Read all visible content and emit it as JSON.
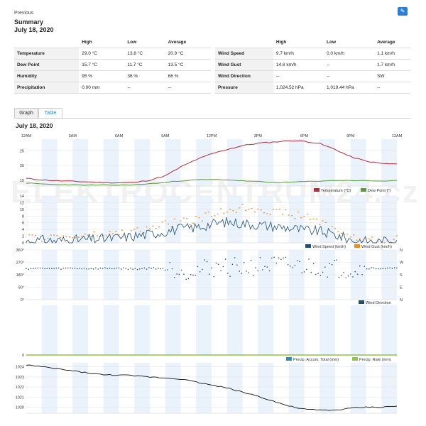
{
  "header": {
    "previous_label": "Previous",
    "title": "Summary",
    "date": "July 18, 2020",
    "edit_icon": "pencil-icon"
  },
  "summary_left": {
    "columns": [
      "",
      "High",
      "Low",
      "Average"
    ],
    "rows": [
      {
        "label": "Temperature",
        "high": "29.0 °C",
        "low": "13.8 °C",
        "avg": "20.9 °C"
      },
      {
        "label": "Dew Point",
        "high": "15.7 °C",
        "low": "11.7 °C",
        "avg": "13.5 °C"
      },
      {
        "label": "Humidity",
        "high": "95 %",
        "low": "36 %",
        "avg": "66 %"
      },
      {
        "label": "Precipitation",
        "high": "0.00 mm",
        "low": "--",
        "avg": "--"
      }
    ]
  },
  "summary_right": {
    "columns": [
      "",
      "High",
      "Low",
      "Average"
    ],
    "rows": [
      {
        "label": "Wind Speed",
        "high": "9.7 km/h",
        "low": "0.0 km/h",
        "avg": "1.1 km/h"
      },
      {
        "label": "Wind Gust",
        "high": "14.8 km/h",
        "low": "--",
        "avg": "1.7 km/h"
      },
      {
        "label": "Wind Direction",
        "high": "--",
        "low": "--",
        "avg": "SW"
      },
      {
        "label": "Pressure",
        "high": "1,024.52 hPa",
        "low": "1,019.44 hPa",
        "avg": "--"
      }
    ]
  },
  "tabs": [
    "Graph",
    "Table"
  ],
  "chart_date": "July 18, 2020",
  "watermark": "ELEKTROCENTRUM24.cz",
  "colors": {
    "temperature": "#b52a36",
    "dew_point": "#5a9a3a",
    "wind_speed": "#1f4e79",
    "wind_gust": "#f08a24",
    "wind_direction": "#1f4e79",
    "precip_total": "#2a8fb8",
    "precip_rate": "#8dc63f",
    "pressure": "#111111",
    "band": "#eaf2fb"
  },
  "chart_data": [
    {
      "type": "line",
      "x_ticks": [
        "12AM",
        "3AM",
        "6AM",
        "9AM",
        "12PM",
        "3PM",
        "6PM",
        "9PM",
        "12AM"
      ],
      "ylim": [
        13,
        29
      ],
      "y_ticks": [
        15,
        20,
        25
      ],
      "series": [
        {
          "name": "Temperature (°C)",
          "x": [
            0,
            1,
            2,
            3,
            4,
            5,
            6,
            7,
            8,
            9,
            10,
            11,
            12,
            13,
            14,
            15,
            16,
            17,
            18,
            19,
            20,
            21,
            22,
            23,
            24
          ],
          "values": [
            15.6,
            15.1,
            14.8,
            14.6,
            14.4,
            14.2,
            14.1,
            14.2,
            15.0,
            16.5,
            19.5,
            22.0,
            24.0,
            25.5,
            26.8,
            27.6,
            28.0,
            28.5,
            28.3,
            27.5,
            25.5,
            23.0,
            21.5,
            20.7,
            20.5
          ]
        },
        {
          "name": "Dew Point (°)",
          "x": [
            0,
            1,
            2,
            3,
            4,
            5,
            6,
            7,
            8,
            9,
            10,
            11,
            12,
            13,
            14,
            15,
            16,
            17,
            18,
            19,
            20,
            21,
            22,
            23,
            24
          ],
          "values": [
            14.0,
            13.7,
            13.5,
            13.4,
            13.3,
            13.3,
            13.3,
            13.4,
            13.8,
            14.2,
            14.8,
            15.1,
            15.2,
            15.1,
            14.8,
            14.5,
            14.2,
            14.3,
            14.5,
            14.7,
            14.9,
            14.9,
            14.8,
            14.7,
            14.8
          ]
        }
      ]
    },
    {
      "type": "line",
      "ylim": [
        0,
        14
      ],
      "y_ticks": [
        0,
        2,
        4,
        6,
        8,
        10,
        12,
        14
      ],
      "series": [
        {
          "name": "Wind Speed (km/h)",
          "x": [
            0,
            1,
            2,
            3,
            4,
            5,
            6,
            7,
            8,
            9,
            10,
            11,
            12,
            13,
            14,
            15,
            16,
            17,
            18,
            19,
            20,
            21,
            22,
            23,
            24
          ],
          "values": [
            0.4,
            0.8,
            0.6,
            0.8,
            1.0,
            1.2,
            1.5,
            2.0,
            2.6,
            3.4,
            4.2,
            4.6,
            5.6,
            6.2,
            5.8,
            5.4,
            4.9,
            4.5,
            3.7,
            3.4,
            2.4,
            0.9,
            0.4,
            0.3,
            1.1
          ]
        },
        {
          "name": "Wind Gust (km/h)",
          "x": [
            0,
            1,
            2,
            3,
            4,
            5,
            6,
            7,
            8,
            9,
            10,
            11,
            12,
            13,
            14,
            15,
            16,
            17,
            18,
            19,
            20,
            21,
            22,
            23,
            24
          ],
          "values": [
            1.1,
            1.6,
            1.9,
            1.7,
            2.1,
            2.4,
            2.8,
            3.4,
            4.2,
            5.6,
            6.3,
            6.8,
            8.4,
            9.8,
            10.5,
            10.3,
            9.4,
            8.5,
            8.0,
            6.3,
            4.2,
            1.7,
            0.9,
            0.5,
            1.7
          ]
        }
      ]
    },
    {
      "type": "scatter",
      "ylim": [
        0,
        360
      ],
      "y_ticks": [
        "0°",
        "90°",
        "180°",
        "270°",
        "360°"
      ],
      "right_ticks": [
        "N",
        "E",
        "S",
        "W",
        "N"
      ],
      "series": [
        {
          "name": "Wind Direction",
          "x": [
            0,
            1,
            2,
            3,
            4,
            5,
            6,
            7,
            8,
            9,
            10,
            11,
            12,
            13,
            14,
            15,
            16,
            17,
            18,
            19,
            20,
            21,
            22,
            23,
            24
          ],
          "values": [
            225,
            226,
            224,
            228,
            225,
            226,
            227,
            222,
            228,
            226,
            219,
            208,
            234,
            238,
            232,
            241,
            248,
            246,
            240,
            235,
            228,
            218,
            228,
            226,
            225
          ]
        }
      ]
    },
    {
      "type": "line",
      "ylim": [
        0,
        1
      ],
      "y_ticks": [
        0
      ],
      "series": [
        {
          "name": "Precip. Accum. Total (mm)",
          "x": [
            0,
            24
          ],
          "values": [
            0,
            0
          ]
        },
        {
          "name": "Precip. Rate (mm)",
          "x": [
            0,
            24
          ],
          "values": [
            0,
            0
          ]
        }
      ]
    },
    {
      "type": "line",
      "ylim": [
        1019.4,
        1024.4
      ],
      "y_ticks": [
        1020,
        1021,
        1022,
        1023,
        1024
      ],
      "series": [
        {
          "name": "Pressure",
          "x": [
            0,
            1,
            2,
            3,
            4,
            5,
            6,
            7,
            8,
            9,
            10,
            11,
            12,
            13,
            14,
            15,
            16,
            17,
            18,
            19,
            20,
            21,
            22,
            23,
            24
          ],
          "values": [
            1024.2,
            1024.0,
            1023.8,
            1023.6,
            1023.4,
            1023.2,
            1023.2,
            1023.1,
            1023.0,
            1022.9,
            1022.8,
            1022.5,
            1022.2,
            1021.9,
            1021.5,
            1021.1,
            1020.6,
            1020.1,
            1019.8,
            1019.7,
            1019.7,
            1019.9,
            1020.0,
            1020.0,
            1020.1
          ]
        }
      ]
    }
  ]
}
